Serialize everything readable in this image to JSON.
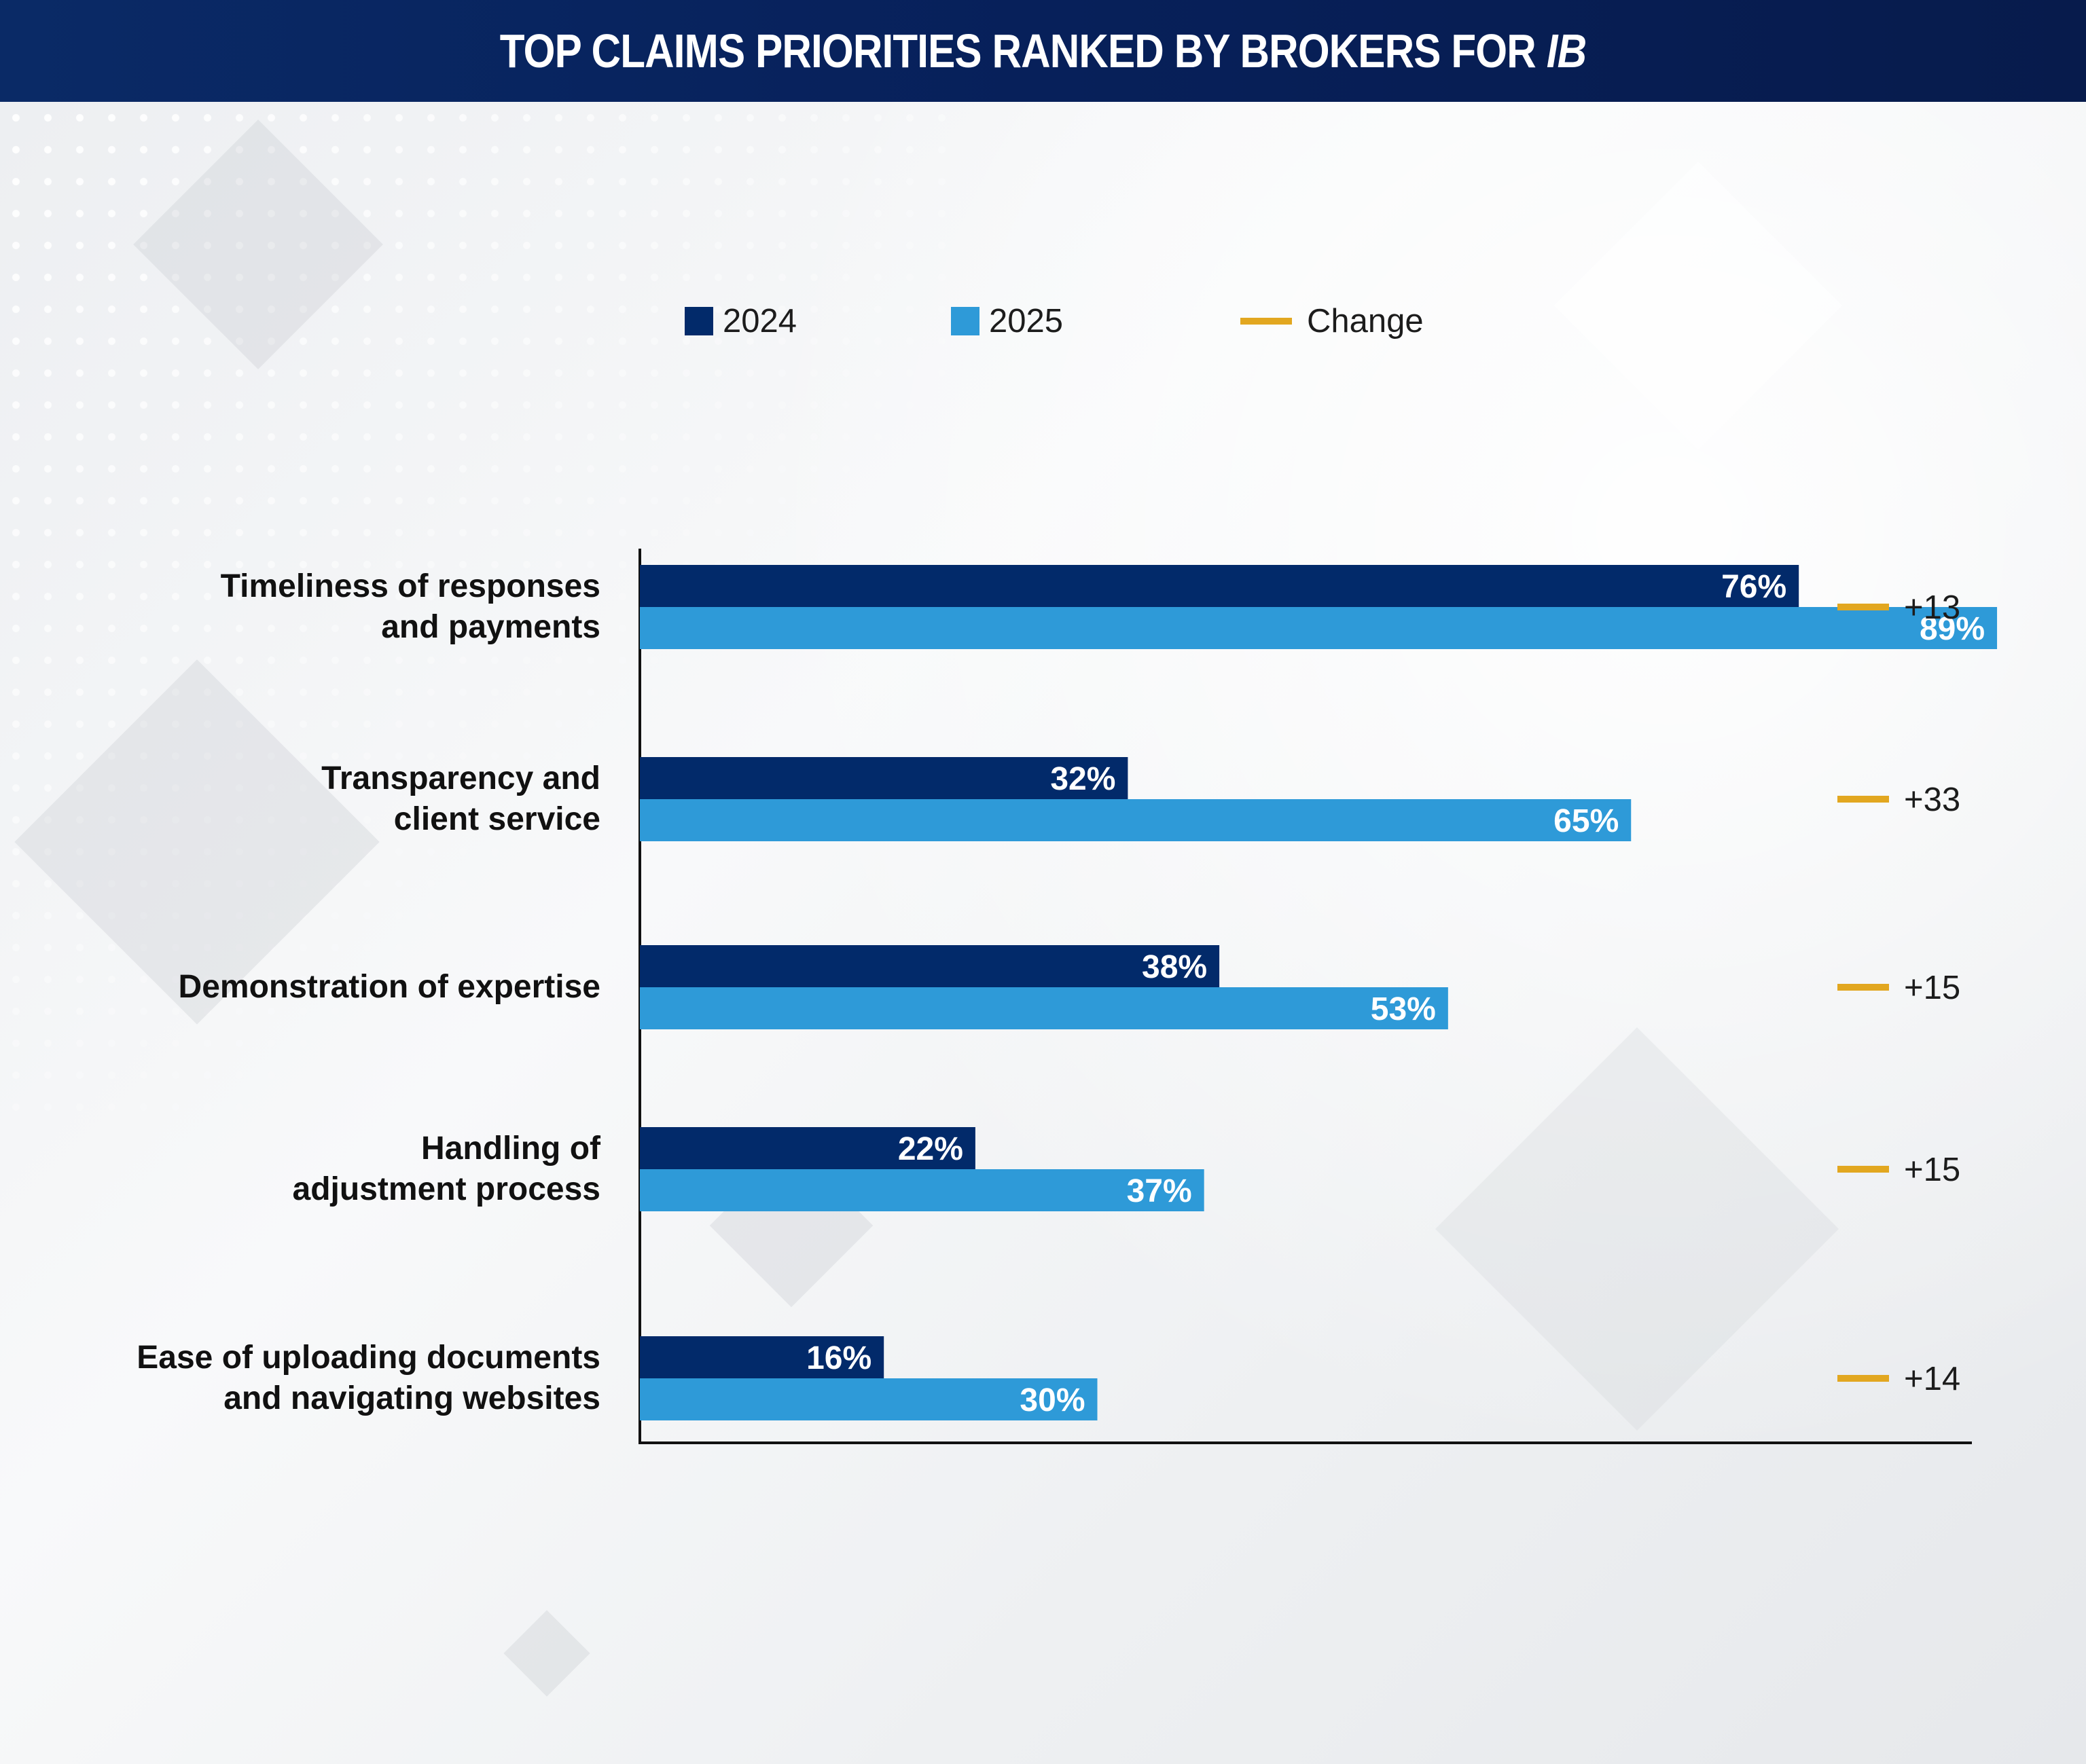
{
  "header": {
    "title_main": "TOP CLAIMS PRIORITIES RANKED BY BROKERS FOR ",
    "title_em": "IB"
  },
  "legend": {
    "s2024": "2024",
    "s2025": "2025",
    "change": "Change"
  },
  "colors": {
    "header": "#0a2a66",
    "s2024": "#022a6a",
    "s2025": "#2e9ad8",
    "change": "#e2a720",
    "axis": "#111111"
  },
  "chart_data": {
    "type": "bar",
    "orientation": "horizontal",
    "title": "TOP CLAIMS PRIORITIES RANKED BY BROKERS FOR IB",
    "categories": [
      [
        "Timeliness of responses",
        "and payments"
      ],
      [
        "Transparency and",
        "client service"
      ],
      [
        "Demonstration of expertise"
      ],
      [
        "Handling of",
        "adjustment process"
      ],
      [
        "Ease of uploading documents",
        "and navigating websites"
      ]
    ],
    "series": [
      {
        "name": "2024",
        "values": [
          76,
          32,
          38,
          22,
          16
        ],
        "labels": [
          "76%",
          "32%",
          "38%",
          "22%",
          "16%"
        ]
      },
      {
        "name": "2025",
        "values": [
          89,
          65,
          53,
          37,
          30
        ],
        "labels": [
          "89%",
          "65%",
          "53%",
          "37%",
          "30%"
        ]
      }
    ],
    "change": {
      "name": "Change",
      "labels": [
        "+13",
        "+33",
        "+15",
        "+15",
        "+14"
      ]
    },
    "xlim": [
      0,
      100
    ],
    "grid": false,
    "legend_position": "top"
  }
}
